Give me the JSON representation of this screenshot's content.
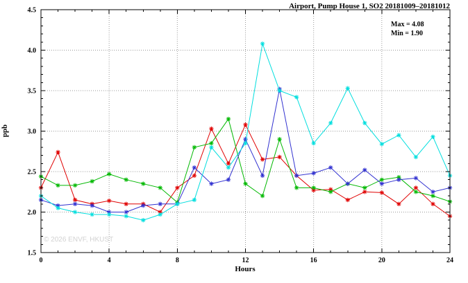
{
  "chart": {
    "title": "Airport, Pump House 1, SO2 20181009–20181012",
    "annotations": [
      "Max = 4.08",
      "Min = 1.90"
    ],
    "ylabel": "ppb",
    "xlabel": "Hours",
    "watermark": "© 2026 ENVF, HKUST"
  },
  "chart_data": {
    "type": "line",
    "title": "Airport, Pump House 1, SO2 20181009–20181012",
    "xlabel": "Hours",
    "ylabel": "ppb",
    "xlim": [
      0,
      24
    ],
    "ylim": [
      1.5,
      4.5
    ],
    "x_ticks": [
      0,
      4,
      8,
      12,
      16,
      20,
      24
    ],
    "x_tick_labels": [
      "0",
      "4",
      "8",
      "12",
      "16",
      "20",
      "24"
    ],
    "y_ticks": [
      1.5,
      2.0,
      2.5,
      3.0,
      3.5,
      4.0,
      4.5
    ],
    "y_tick_labels": [
      "1.5",
      "2.0",
      "2.5",
      "3.0",
      "3.5",
      "4.0",
      "4.5"
    ],
    "grid": true,
    "legend": "none",
    "stats": {
      "max": 4.08,
      "min": 1.9
    },
    "x": [
      0,
      1,
      2,
      3,
      4,
      5,
      6,
      7,
      8,
      9,
      10,
      11,
      12,
      13,
      14,
      15,
      16,
      17,
      18,
      19,
      20,
      21,
      22,
      23,
      24
    ],
    "series": [
      {
        "name": "red-series",
        "color": "#e00000",
        "values": [
          2.3,
          2.74,
          2.15,
          2.1,
          2.14,
          2.1,
          2.1,
          2.0,
          2.3,
          2.45,
          3.03,
          2.6,
          3.08,
          2.65,
          2.68,
          2.45,
          2.27,
          2.28,
          2.15,
          2.25,
          2.24,
          2.1,
          2.3,
          2.1,
          1.95
        ]
      },
      {
        "name": "green-series",
        "color": "#00b800",
        "values": [
          2.44,
          2.33,
          2.33,
          2.38,
          2.47,
          2.4,
          2.35,
          2.3,
          2.12,
          2.8,
          2.85,
          3.15,
          2.35,
          2.2,
          2.9,
          2.3,
          2.3,
          2.25,
          2.35,
          2.3,
          2.4,
          2.43,
          2.25,
          2.2,
          2.13
        ]
      },
      {
        "name": "blue-series",
        "color": "#3030d0",
        "values": [
          2.15,
          2.08,
          2.1,
          2.08,
          2.0,
          2.0,
          2.08,
          2.1,
          2.1,
          2.55,
          2.35,
          2.4,
          2.9,
          2.45,
          3.52,
          2.45,
          2.48,
          2.55,
          2.35,
          2.52,
          2.35,
          2.4,
          2.42,
          2.25,
          2.3
        ]
      },
      {
        "name": "cyan-series",
        "color": "#00dede",
        "values": [
          2.2,
          2.05,
          2.0,
          1.97,
          1.97,
          1.95,
          1.9,
          1.97,
          2.1,
          2.15,
          2.8,
          2.55,
          2.85,
          4.08,
          3.5,
          3.42,
          2.85,
          3.1,
          3.53,
          3.1,
          2.84,
          2.95,
          2.68,
          2.93,
          2.45
        ]
      }
    ]
  }
}
